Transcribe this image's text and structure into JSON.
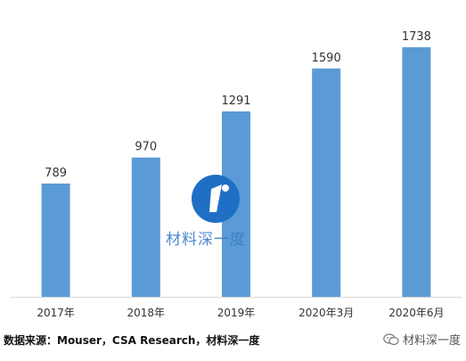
{
  "chart_data": {
    "type": "bar",
    "categories": [
      "2017年",
      "2018年",
      "2019年",
      "2020年3月",
      "2020年6月"
    ],
    "values": [
      789,
      970,
      1291,
      1590,
      1738
    ],
    "title": "",
    "xlabel": "",
    "ylabel": "",
    "ylim": [
      0,
      1800
    ],
    "grid": false,
    "legend": "none",
    "bar_color": "#5b9bd5",
    "data_labels": true
  },
  "source_note": "数据来源：Mouser，CSA Research，材料深一度",
  "watermark": {
    "text": "材料深一度",
    "color": "#3d7cc8"
  },
  "footer": {
    "brand": "材料深一度",
    "icon": "wechat-icon"
  }
}
